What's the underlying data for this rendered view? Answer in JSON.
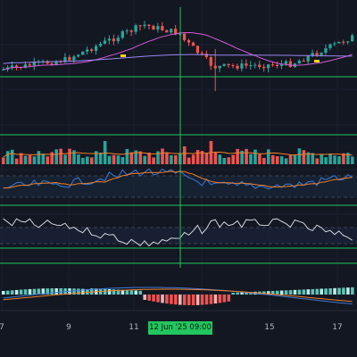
{
  "colors": {
    "background": "#131722",
    "up": "#26a69a",
    "down": "#ef5350",
    "ma_fast": "#d05bd8",
    "ma_slow": "#9b87f5",
    "guide": "#22c55e",
    "rsi_line": "#3d7ad6",
    "rsi_signal": "#f0802a",
    "osc_line": "#d1d4dc"
  },
  "time_axis": {
    "labels": [
      "7",
      "9",
      "11",
      "15",
      "17"
    ]
  },
  "crosshair": {
    "time_label": "12 Jun '25   09:00"
  },
  "panes": {
    "price": {
      "name": "price-pane"
    },
    "volume": {
      "name": "volume-pane"
    },
    "rsi": {
      "name": "rsi-pane"
    },
    "oscillator": {
      "name": "oscillator-pane"
    },
    "macd": {
      "name": "macd-pane"
    }
  }
}
